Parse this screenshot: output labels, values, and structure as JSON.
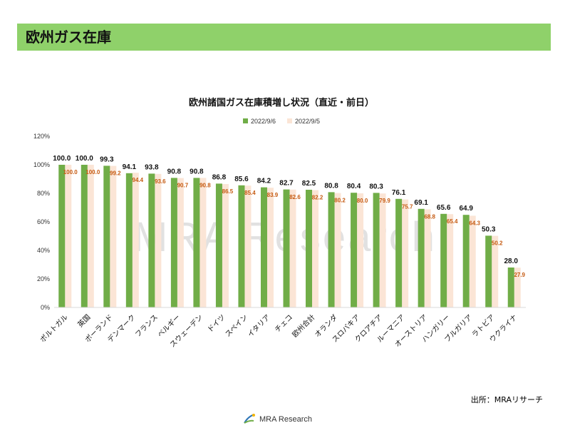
{
  "header": {
    "title": "欧州ガス在庫"
  },
  "chart_data": {
    "type": "bar",
    "title": "欧州諸国ガス在庫積増し状況（直近・前日）",
    "categories": [
      "ポルトガル",
      "英国",
      "ポーランド",
      "デンマーク",
      "フランス",
      "ベルギー",
      "スウェーデン",
      "ドイツ",
      "スペイン",
      "イタリア",
      "チェコ",
      "欧州合計",
      "オランダ",
      "スロバキア",
      "クロアチア",
      "ルーマニア",
      "オーストリア",
      "ハンガリー",
      "ブルガリア",
      "ラトビア",
      "ウクライナ"
    ],
    "series": [
      {
        "name": "2022/9/6",
        "color": "#70ad47",
        "values": [
          100.0,
          100.0,
          99.3,
          94.1,
          93.8,
          90.8,
          90.8,
          86.8,
          85.6,
          84.2,
          82.7,
          82.5,
          80.8,
          80.4,
          80.3,
          76.1,
          69.1,
          65.6,
          64.9,
          50.3,
          28.0
        ]
      },
      {
        "name": "2022/9/5",
        "color": "#fbe5d6",
        "values": [
          100.0,
          100.0,
          99.2,
          94.4,
          93.6,
          90.7,
          90.8,
          86.5,
          85.4,
          83.9,
          82.6,
          82.2,
          80.2,
          80.0,
          79.9,
          75.7,
          68.8,
          65.4,
          64.3,
          50.2,
          27.9
        ]
      }
    ],
    "label_colors": {
      "current": "#111111",
      "previous": "#c55a11"
    },
    "ylim": [
      0,
      120
    ],
    "yticks": [
      "0%",
      "20%",
      "40%",
      "60%",
      "80%",
      "100%",
      "120%"
    ],
    "legend_position": "top",
    "grid": false
  },
  "watermark": {
    "text": "MRA Research"
  },
  "source": {
    "text": "出所：MRAリサーチ"
  },
  "footer": {
    "logo_text": "MRA Research"
  }
}
